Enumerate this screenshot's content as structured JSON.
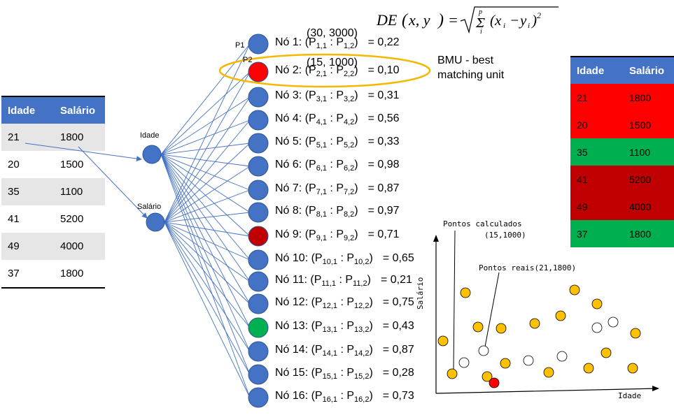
{
  "left_table": {
    "headers": [
      "Idade",
      "Salário"
    ],
    "rows": [
      [
        "21",
        "1800"
      ],
      [
        "20",
        "1500"
      ],
      [
        "35",
        "1100"
      ],
      [
        "41",
        "5200"
      ],
      [
        "49",
        "4000"
      ],
      [
        "37",
        "1800"
      ]
    ]
  },
  "right_table": {
    "headers": [
      "Idade",
      "Salário"
    ],
    "rows": [
      {
        "idade": "21",
        "salario": "1800",
        "color": "#ff0000"
      },
      {
        "idade": "20",
        "salario": "1500",
        "color": "#ff0000"
      },
      {
        "idade": "35",
        "salario": "1100",
        "color": "#00b050"
      },
      {
        "idade": "41",
        "salario": "5200",
        "color": "#c00000"
      },
      {
        "idade": "49",
        "salario": "4000",
        "color": "#c00000"
      },
      {
        "idade": "37",
        "salario": "1800",
        "color": "#00b050"
      }
    ]
  },
  "inputs": {
    "idade": "Idade",
    "salario": "Salário"
  },
  "weights": {
    "p1": "P1",
    "p2": "P2",
    "w1": "(30, 3000)",
    "w2": "(15, 1000)"
  },
  "formula": "DE(x, y) = √ Σ (xᵢ − yᵢ)²",
  "formula_limits": {
    "upper": "p",
    "lower": "i"
  },
  "bmu_line1": "BMU - best",
  "bmu_line2": "matching unit",
  "nodes": [
    {
      "label": "Nó 1: (P",
      "i": "1",
      "value": "= 0,22",
      "color": "#4472c4"
    },
    {
      "label": "Nó 2: (P",
      "i": "2",
      "value": "= 0,10",
      "color": "#ff0000"
    },
    {
      "label": "Nó 3: (P",
      "i": "3",
      "value": "= 0,31",
      "color": "#4472c4"
    },
    {
      "label": "Nó 4: (P",
      "i": "4",
      "value": "= 0,56",
      "color": "#4472c4"
    },
    {
      "label": "Nó 5: (P",
      "i": "5",
      "value": "= 0,33",
      "color": "#4472c4"
    },
    {
      "label": "Nó 6: (P",
      "i": "6",
      "value": "= 0,98",
      "color": "#4472c4"
    },
    {
      "label": "Nó 7: (P",
      "i": "7",
      "value": "= 0,87",
      "color": "#4472c4"
    },
    {
      "label": "Nó 8: (P",
      "i": "8",
      "value": "= 0,97",
      "color": "#4472c4"
    },
    {
      "label": "Nó 9: (P",
      "i": "9",
      "value": "= 0,71",
      "color": "#c00000"
    },
    {
      "label": "Nó 10: (P",
      "i": "10",
      "value": "= 0,65",
      "color": "#4472c4"
    },
    {
      "label": "Nó 11: (P",
      "i": "11",
      "value": "= 0,21",
      "color": "#4472c4"
    },
    {
      "label": "Nó 12: (P",
      "i": "12",
      "value": "= 0,75",
      "color": "#4472c4"
    },
    {
      "label": "Nó 13: (P",
      "i": "13",
      "value": "= 0,43",
      "color": "#00b050"
    },
    {
      "label": "Nó 14: (P",
      "i": "14",
      "value": "= 0,87",
      "color": "#4472c4"
    },
    {
      "label": "Nó 15: (P",
      "i": "15",
      "value": "= 0,28",
      "color": "#4472c4"
    },
    {
      "label": "Nó 16: (P",
      "i": "16",
      "value": "= 0,73",
      "color": "#4472c4"
    }
  ],
  "plot": {
    "ylabel": "Salário",
    "xlabel": "Idade",
    "calc_label": "Pontos calculados",
    "calc_coords": "(15,1000)",
    "real_label": "Pontos reais(21,1800)"
  }
}
